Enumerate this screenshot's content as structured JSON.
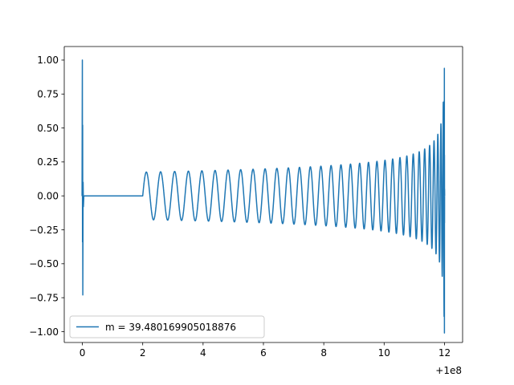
{
  "chart_data": {
    "type": "line",
    "title": "",
    "xlabel": "",
    "ylabel": "",
    "x_offset_label": "+1e8",
    "xlim": [
      -0.6,
      12.6
    ],
    "ylim": [
      -1.08,
      1.1
    ],
    "x_ticks": [
      0,
      2,
      4,
      6,
      8,
      10,
      12
    ],
    "x_tick_labels": [
      "0",
      "2",
      "4",
      "6",
      "8",
      "10",
      "12"
    ],
    "y_ticks": [
      1.0,
      0.75,
      0.5,
      0.25,
      0.0,
      -0.25,
      -0.5,
      -0.75,
      -1.0
    ],
    "y_tick_labels": [
      "1.00",
      "0.75",
      "0.50",
      "0.25",
      "0.00",
      "−0.25",
      "−0.50",
      "−0.75",
      "−1.00"
    ],
    "grid": false,
    "legend_position": "lower-left",
    "series": [
      {
        "name": "m = 39.480169905018876",
        "color": "#1f77b4",
        "description_segments": [
          {
            "x_start": -0.02,
            "x_end": 0.05,
            "shape": "initial spike",
            "max": 1.0,
            "min": -0.73
          },
          {
            "x_start": 0.05,
            "x_end": 2.0,
            "shape": "flat",
            "value": 0.0
          },
          {
            "x_start": 2.0,
            "x_end": 12.0,
            "shape": "chirp oscillation",
            "amplitude_start": 0.18,
            "amplitude_mid": 0.22,
            "amplitude_near_end": 0.45,
            "final_max": 0.94,
            "final_min": -1.01
          }
        ]
      }
    ]
  }
}
